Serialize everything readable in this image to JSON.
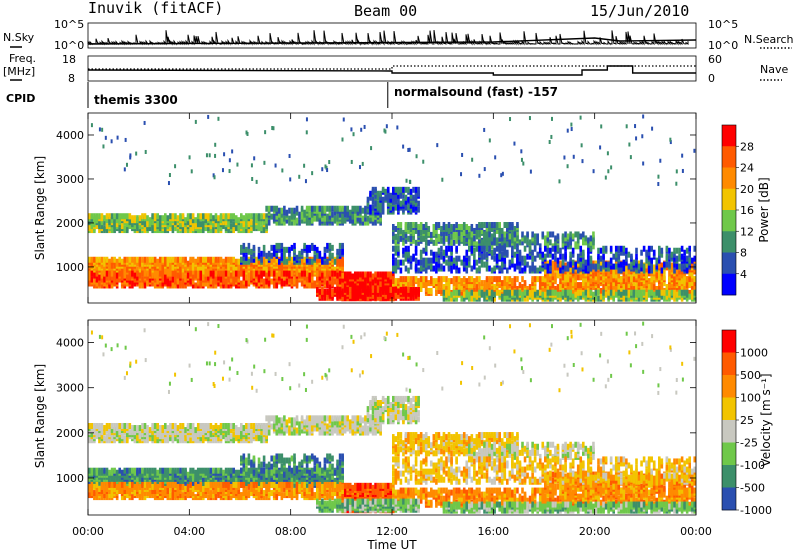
{
  "header": {
    "title": "Inuvik (fitACF)",
    "beam": "Beam 00",
    "date": "15/Jun/2010"
  },
  "strip_labels": {
    "nsky": "N.Sky",
    "nsky_ticks": [
      "10^5",
      "10^0"
    ],
    "nsearch": "N.Search",
    "nsearch_ticks": [
      "10^5",
      "10^0"
    ],
    "freq": "Freq.",
    "freq_unit": "[MHz]",
    "freq_ticks": [
      "18",
      "8"
    ],
    "nave": "Nave",
    "nave_ticks": [
      "60",
      "0"
    ],
    "cpid": "CPID",
    "cpid_mode_1": "themis 3300",
    "cpid_mode_2": "normalsound (fast) -157"
  },
  "colors": {
    "power_scale": [
      "#0000ff",
      "#2a4fb0",
      "#3c8f6a",
      "#6fc84a",
      "#f2c400",
      "#ff8a00",
      "#ff5a00",
      "#ff0000"
    ],
    "velocity_scale": [
      "#2a4fb0",
      "#3c8f6a",
      "#6fc84a",
      "#c8c8c0",
      "#f2c400",
      "#ff8a00",
      "#ff5a00",
      "#ff0000"
    ]
  },
  "chart_data": [
    {
      "type": "heatmap",
      "name": "power",
      "ylabel": "Slant Range [km]",
      "yticks": [
        "1000",
        "2000",
        "3000",
        "4000"
      ],
      "ylim": [
        180,
        4500
      ],
      "xlim": [
        "00:00",
        "24:00"
      ],
      "colorbar_label": "Power [dB]",
      "colorbar_ticks": [
        "28",
        "24",
        "20",
        "16",
        "12",
        "8",
        "4"
      ],
      "colorbar_range": [
        0,
        32
      ]
    },
    {
      "type": "heatmap",
      "name": "velocity",
      "xlabel": "Time UT",
      "ylabel": "Slant Range [km]",
      "xticks": [
        "00:00",
        "04:00",
        "08:00",
        "12:00",
        "16:00",
        "20:00",
        "00:00"
      ],
      "yticks": [
        "1000",
        "2000",
        "3000",
        "4000"
      ],
      "ylim": [
        180,
        4500
      ],
      "colorbar_label": "Velocity [m s⁻¹]",
      "colorbar_ticks": [
        "1000",
        "500",
        "100",
        "25",
        "-25",
        "-100",
        "-500",
        "-1000"
      ]
    }
  ],
  "cpid_change_time": "11:50"
}
